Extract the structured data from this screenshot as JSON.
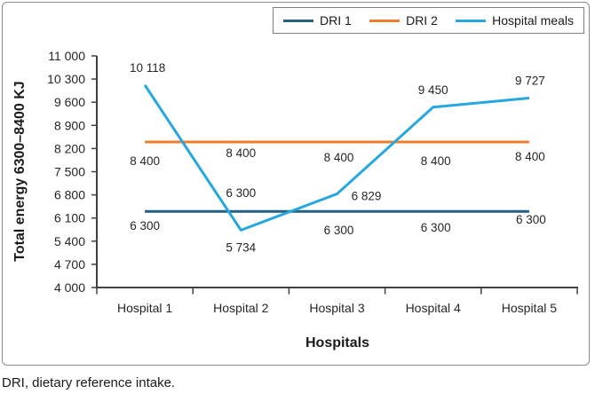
{
  "figure": {
    "caption": "DRI, dietary reference intake."
  },
  "colors": {
    "axis": "#404040",
    "text": "#262626",
    "frame_border": "#8c8c8c",
    "legend_border": "#7f7f7f",
    "background": "#ffffff"
  },
  "chart_data": {
    "type": "line",
    "title": "",
    "xlabel": "Hospitals",
    "ylabel": "Total energy 6300–8400 KJ",
    "categories": [
      "Hospital 1",
      "Hospital 2",
      "Hospital 3",
      "Hospital 4",
      "Hospital 5"
    ],
    "ylim": [
      4000,
      11000
    ],
    "ytick_step": 700,
    "ytick_labels": [
      "4 000",
      "4 700",
      "5 400",
      "6 100",
      "6 800",
      "7 500",
      "8 200",
      "8 900",
      "9 600",
      "10 300",
      "11 000"
    ],
    "grid": false,
    "legend_position": "top-right",
    "markers": false,
    "series": [
      {
        "name": "DRI 1",
        "color": "#25617F",
        "values": [
          6300,
          6300,
          6300,
          6300,
          6300
        ],
        "point_labels": [
          "6 300",
          "6 300",
          "6 300",
          "6 300",
          "6 300"
        ],
        "label_offsets": [
          [
            0,
            21
          ],
          [
            0,
            -16
          ],
          [
            2,
            26
          ],
          [
            3,
            23
          ],
          [
            2,
            14
          ]
        ]
      },
      {
        "name": "DRI 2",
        "color": "#EF7D2E",
        "values": [
          8400,
          8400,
          8400,
          8400,
          8400
        ],
        "point_labels": [
          "8 400",
          "8 400",
          "8 400",
          "8 400",
          "8 400"
        ],
        "label_offsets": [
          [
            0,
            26
          ],
          [
            0,
            17
          ],
          [
            2,
            22
          ],
          [
            3,
            26
          ],
          [
            1,
            21
          ]
        ]
      },
      {
        "name": "Hospital meals",
        "color": "#27A7E0",
        "values": [
          10118,
          5734,
          6829,
          9450,
          9727
        ],
        "point_labels": [
          "10 118",
          "5 734",
          "6 829",
          "9 450",
          "9 727"
        ],
        "label_offsets": [
          [
            3,
            -15
          ],
          [
            0,
            24
          ],
          [
            33,
            7
          ],
          [
            0,
            -15
          ],
          [
            1,
            -15
          ]
        ]
      }
    ]
  }
}
